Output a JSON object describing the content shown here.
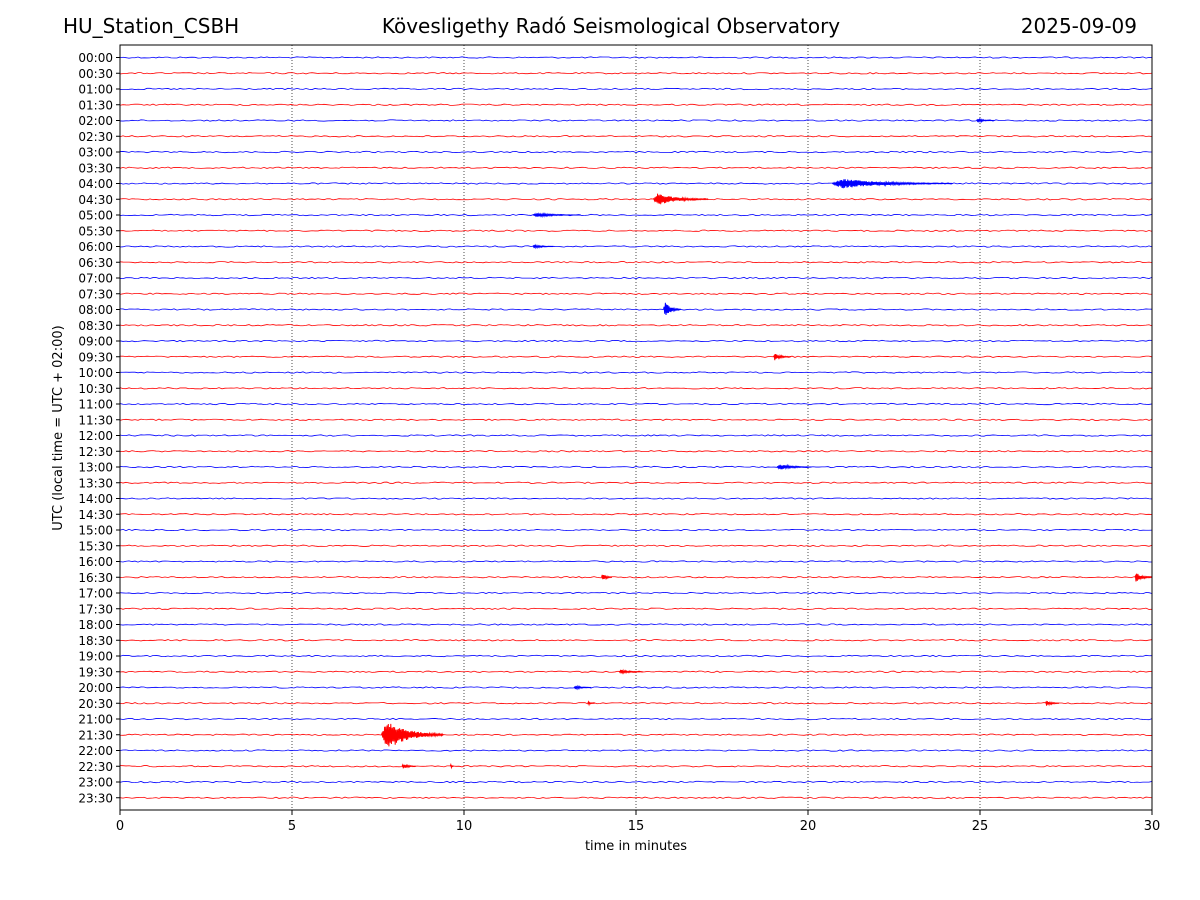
{
  "header": {
    "station": "HU_Station_CSBH",
    "title": "Kövesligethy Radó Seismological Observatory",
    "date": "2025-09-09"
  },
  "chart_data": {
    "type": "line",
    "subtype": "helicorder",
    "xlabel": "time in minutes",
    "ylabel": "UTC (local time = UTC + 02:00)",
    "xlim": [
      0,
      30
    ],
    "xticks": [
      0,
      5,
      10,
      15,
      20,
      25,
      30
    ],
    "vertical_gridlines": [
      5,
      10,
      15,
      20,
      25
    ],
    "grid_style": "dotted",
    "colors": [
      "#0000ff",
      "#ff0000"
    ],
    "rows": [
      "00:00",
      "00:30",
      "01:00",
      "01:30",
      "02:00",
      "02:30",
      "03:00",
      "03:30",
      "04:00",
      "04:30",
      "05:00",
      "05:30",
      "06:00",
      "06:30",
      "07:00",
      "07:30",
      "08:00",
      "08:30",
      "09:00",
      "09:30",
      "10:00",
      "10:30",
      "11:00",
      "11:30",
      "12:00",
      "12:30",
      "13:00",
      "13:30",
      "14:00",
      "14:30",
      "15:00",
      "15:30",
      "16:00",
      "16:30",
      "17:00",
      "17:30",
      "18:00",
      "18:30",
      "19:00",
      "19:30",
      "20:00",
      "20:30",
      "21:00",
      "21:30",
      "22:00",
      "22:30",
      "23:00",
      "23:30"
    ],
    "events": [
      {
        "row": "02:00",
        "start": 24.9,
        "duration": 0.5,
        "amplitude": 2
      },
      {
        "row": "04:00",
        "start": 20.7,
        "duration": 3.5,
        "amplitude": 5
      },
      {
        "row": "04:30",
        "start": 15.5,
        "duration": 1.6,
        "amplitude": 6
      },
      {
        "row": "05:00",
        "start": 12.0,
        "duration": 1.4,
        "amplitude": 2
      },
      {
        "row": "06:00",
        "start": 12.0,
        "duration": 0.6,
        "amplitude": 2
      },
      {
        "row": "08:00",
        "start": 15.8,
        "duration": 0.5,
        "amplitude": 8
      },
      {
        "row": "09:30",
        "start": 19.0,
        "duration": 0.5,
        "amplitude": 4
      },
      {
        "row": "13:00",
        "start": 19.1,
        "duration": 1.0,
        "amplitude": 3
      },
      {
        "row": "16:30",
        "start": 14.0,
        "duration": 0.3,
        "amplitude": 4
      },
      {
        "row": "16:30",
        "start": 29.5,
        "duration": 0.5,
        "amplitude": 5
      },
      {
        "row": "19:30",
        "start": 14.5,
        "duration": 0.7,
        "amplitude": 2
      },
      {
        "row": "20:00",
        "start": 13.2,
        "duration": 0.5,
        "amplitude": 2
      },
      {
        "row": "20:30",
        "start": 13.6,
        "duration": 0.2,
        "amplitude": 2
      },
      {
        "row": "20:30",
        "start": 26.9,
        "duration": 0.4,
        "amplitude": 3
      },
      {
        "row": "21:30",
        "start": 7.6,
        "duration": 1.8,
        "amplitude": 16
      },
      {
        "row": "22:30",
        "start": 8.2,
        "duration": 0.4,
        "amplitude": 3
      },
      {
        "row": "22:30",
        "start": 9.6,
        "duration": 0.1,
        "amplitude": 3
      }
    ]
  }
}
